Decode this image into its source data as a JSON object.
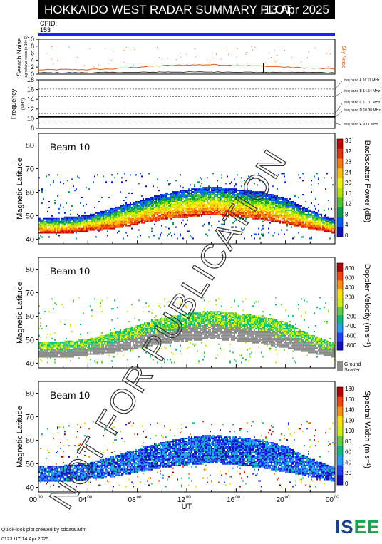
{
  "header": {
    "title": "HOKKAIDO WEST RADAR SUMMARY PLOT",
    "date": "13 Apr 2025",
    "cpid_label": "CPID:",
    "cpid_value": "153"
  },
  "footer": {
    "credit_line1": "Quick-look plot created by sddata.adm",
    "credit_line2": "0123 UT 14 Apr 2025",
    "logo_text": "ISEE"
  },
  "watermark": "NOT FOR PUBLICATION",
  "colors": {
    "cpid_bar": "#2222ee",
    "sky_noise": "#e05a10",
    "ground_scatter": "#8c8c8c"
  },
  "chart_data": [
    {
      "type": "line",
      "panel": "search-noise",
      "ylabel": "Search Noise",
      "ylabel_sub": "log-relative-noise (n·10^-6)",
      "ylim": [
        0,
        10
      ],
      "yticks": [
        0,
        2,
        4,
        6,
        8,
        10
      ],
      "side_label": "Sky Noise",
      "x_hours": [
        0,
        2,
        4,
        6,
        8,
        10,
        12,
        14,
        16,
        18,
        20,
        22,
        24
      ],
      "series": [
        {
          "name": "Sky Noise",
          "values": [
            1.2,
            1.3,
            1.3,
            1.5,
            2.0,
            2.4,
            2.6,
            2.7,
            2.5,
            2.3,
            2.0,
            1.7,
            1.5
          ]
        },
        {
          "name": "Search Noise",
          "values": [
            0.4,
            0.4,
            0.4,
            0.5,
            0.5,
            0.6,
            0.6,
            0.6,
            0.6,
            0.5,
            0.5,
            0.5,
            0.4
          ]
        }
      ]
    },
    {
      "type": "line",
      "panel": "frequency",
      "ylabel": "Frequency",
      "ylabel_unit": "(MHz)",
      "ylim": [
        8,
        18
      ],
      "yticks": [
        8,
        10,
        12,
        14,
        16,
        18
      ],
      "band_labels": [
        "freq band A 16.11 MHz",
        "freq band B 14.54 MHz",
        "freq band C 11.07 MHz",
        "freq band D 10.30 MHz",
        "freq band E 9.11 MHz"
      ],
      "band_values": [
        16.11,
        14.54,
        11.07,
        10.3,
        9.11
      ],
      "operating_frequency": 10.4
    },
    {
      "type": "heatmap",
      "panel": "power",
      "beam_label": "Beam 10",
      "ylabel": "Magnetic Latitude",
      "ylim": [
        38,
        85
      ],
      "yticks": [
        40,
        50,
        60,
        70,
        80
      ],
      "colorbar_label": "Backscatter Power (dB)",
      "colorbar_ticks": [
        0,
        4,
        8,
        12,
        16,
        20,
        24,
        28,
        32,
        36
      ],
      "x_hours": [
        0,
        2,
        4,
        6,
        8,
        10,
        12,
        14,
        16,
        18,
        20,
        22,
        24
      ],
      "echo_lower_boundary_mlat": [
        43,
        43,
        44,
        45,
        47,
        49,
        50,
        51,
        50,
        49,
        47,
        45,
        43
      ],
      "echo_upper_boundary_mlat": [
        48,
        48,
        49,
        52,
        55,
        58,
        60,
        61,
        60,
        59,
        56,
        51,
        47
      ],
      "sparse_echo_region_mlat": [
        40,
        68
      ]
    },
    {
      "type": "heatmap",
      "panel": "velocity",
      "beam_label": "Beam 10",
      "ylabel": "Magnetic Latitude",
      "ylim": [
        38,
        85
      ],
      "yticks": [
        40,
        50,
        60,
        70,
        80
      ],
      "colorbar_label": "Doppler Velocity (m s⁻¹)",
      "colorbar_ticks": [
        800,
        600,
        400,
        200,
        0,
        -200,
        -400,
        -600,
        -800
      ],
      "ground_scatter_label": "Ground Scatter",
      "x_hours": [
        0,
        2,
        4,
        6,
        8,
        10,
        12,
        14,
        16,
        18,
        20,
        22,
        24
      ],
      "echo_lower_boundary_mlat": [
        43,
        43,
        44,
        45,
        47,
        49,
        50,
        51,
        50,
        49,
        47,
        45,
        43
      ],
      "echo_upper_boundary_mlat": [
        48,
        48,
        49,
        52,
        55,
        58,
        60,
        61,
        60,
        59,
        56,
        51,
        47
      ]
    },
    {
      "type": "heatmap",
      "panel": "width",
      "beam_label": "Beam 10",
      "ylabel": "Magnetic Latitude",
      "xlabel": "UT",
      "ylim": [
        38,
        85
      ],
      "yticks": [
        40,
        50,
        60,
        70,
        80
      ],
      "xtick_labels": [
        "00",
        "04",
        "08",
        "12",
        "16",
        "20",
        "00"
      ],
      "colorbar_label": "Spectral Width (m s⁻¹)",
      "colorbar_ticks": [
        0,
        20,
        40,
        60,
        80,
        100,
        120,
        140,
        160,
        180
      ],
      "x_hours": [
        0,
        2,
        4,
        6,
        8,
        10,
        12,
        14,
        16,
        18,
        20,
        22,
        24
      ],
      "echo_lower_boundary_mlat": [
        43,
        43,
        44,
        45,
        47,
        49,
        50,
        51,
        50,
        49,
        47,
        45,
        43
      ],
      "echo_upper_boundary_mlat": [
        48,
        48,
        49,
        52,
        55,
        58,
        60,
        61,
        60,
        59,
        56,
        51,
        47
      ]
    }
  ]
}
